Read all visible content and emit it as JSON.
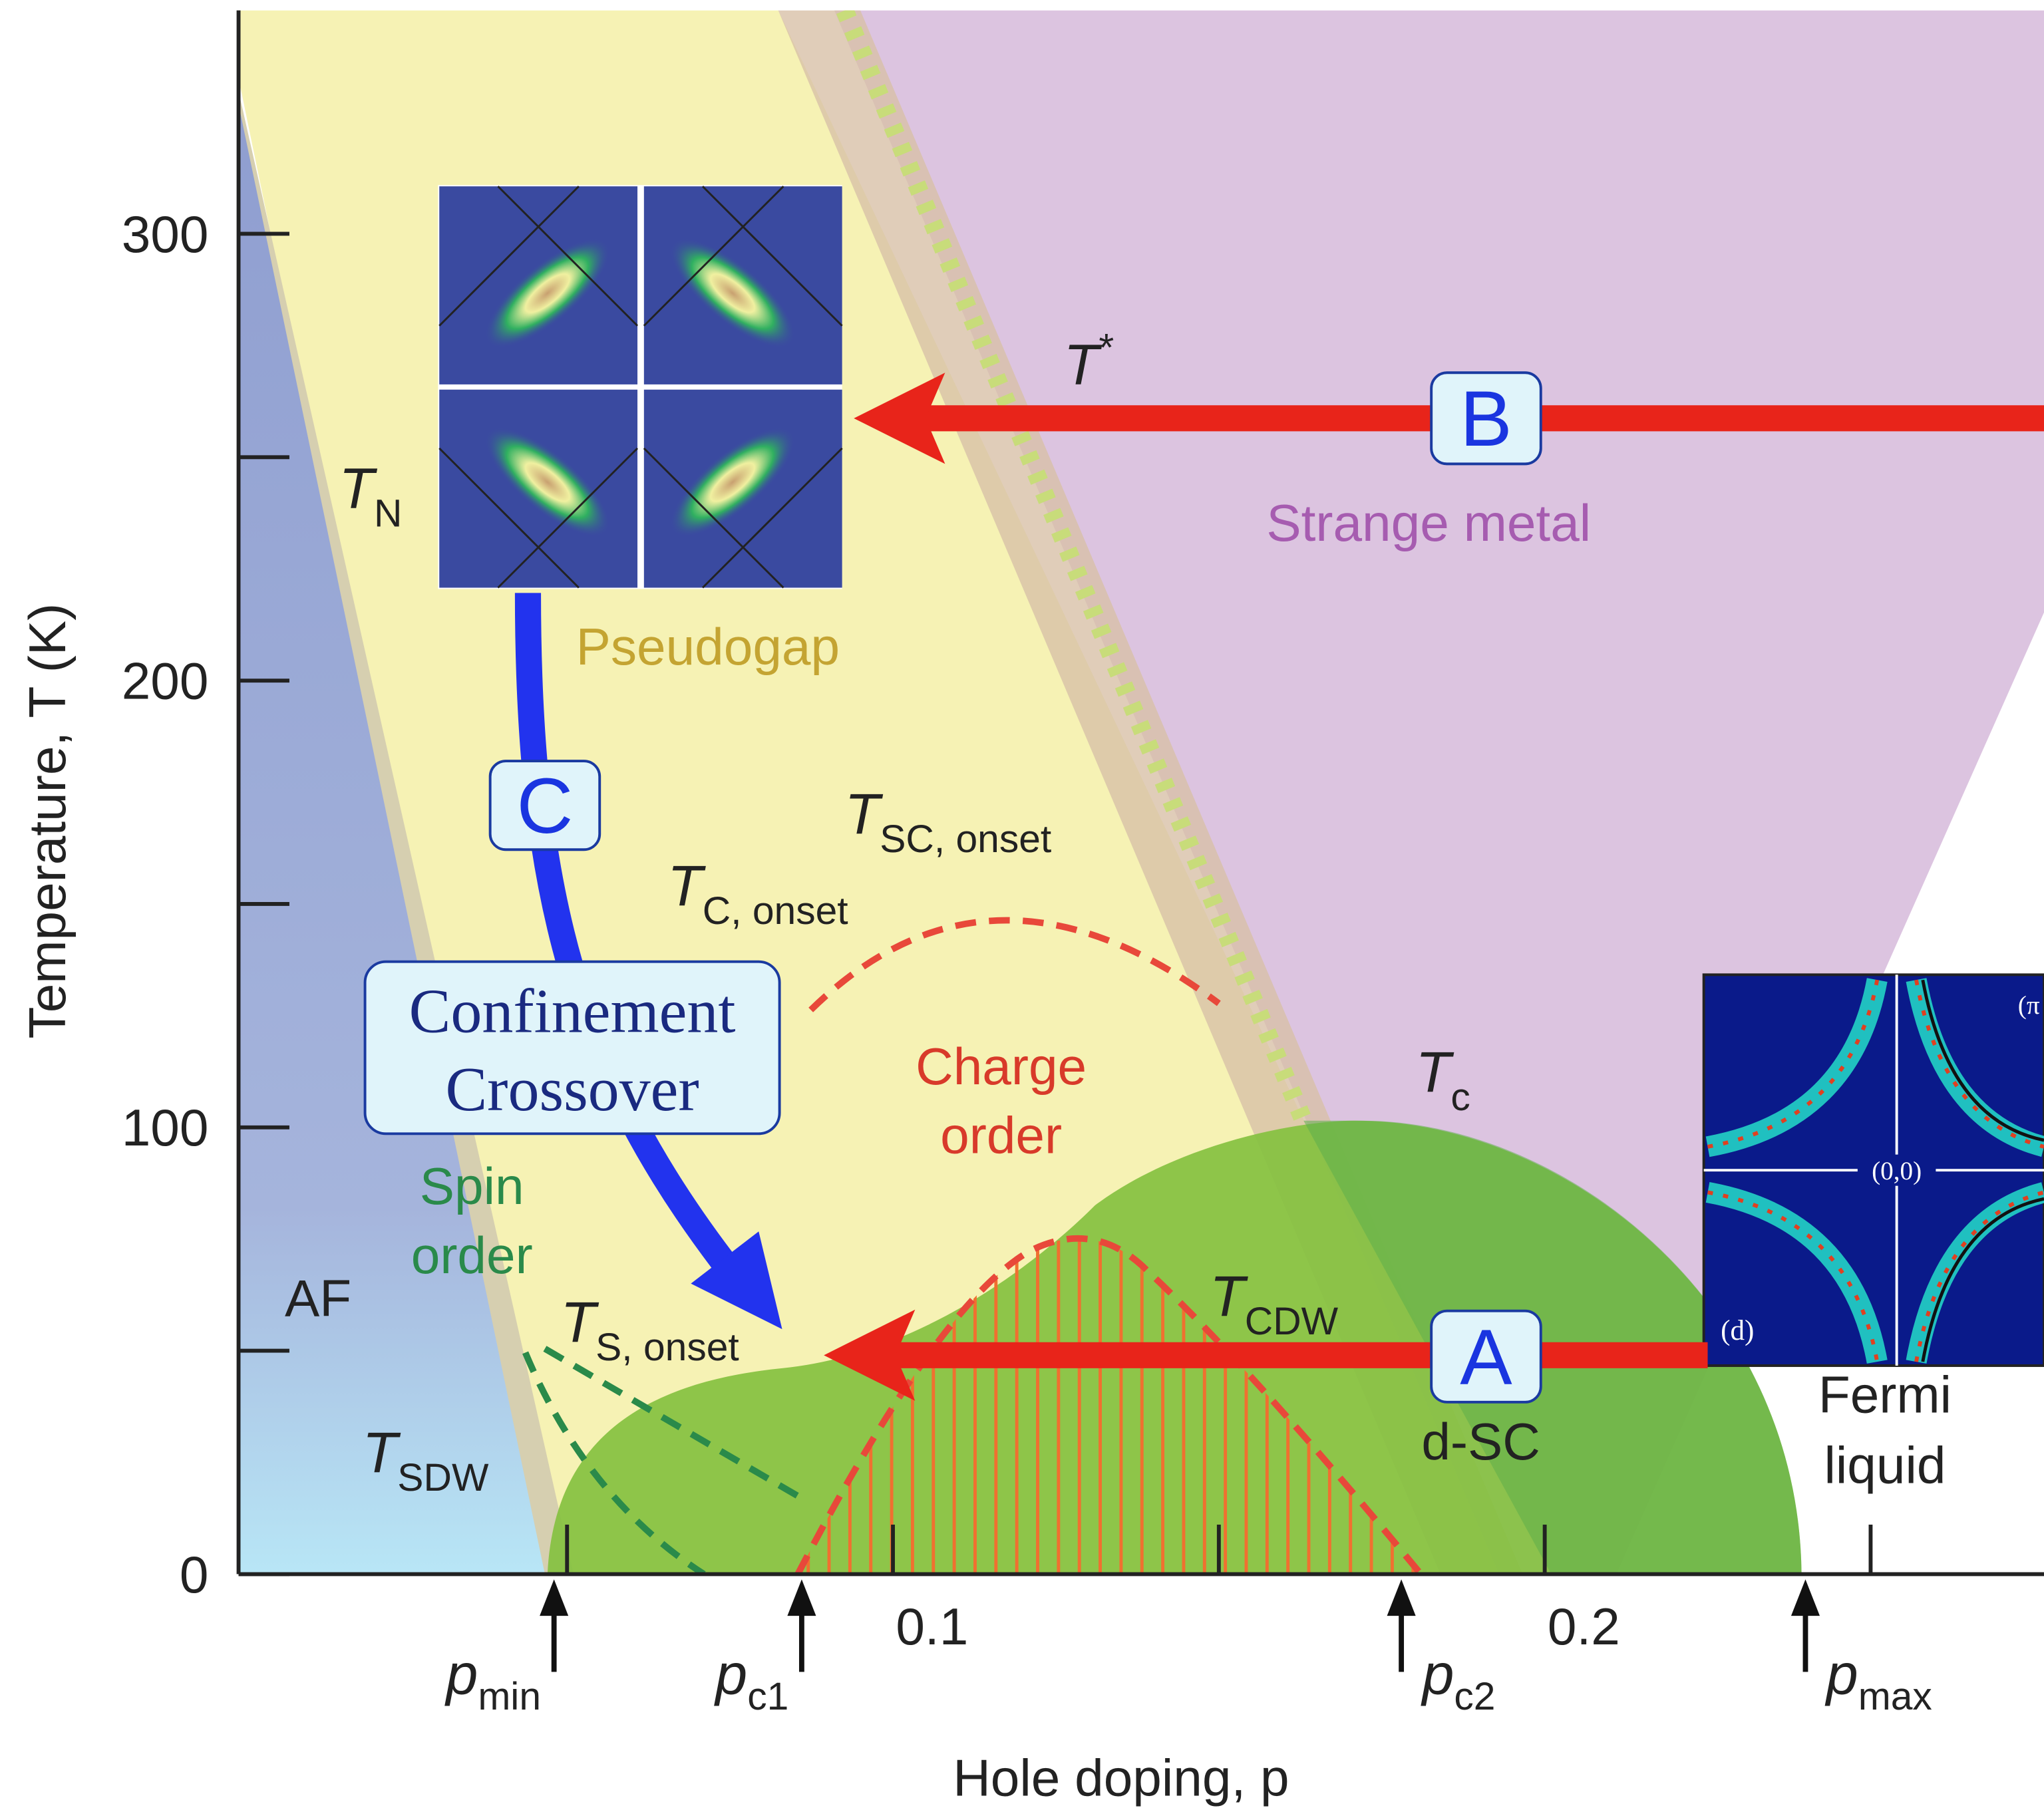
{
  "chart_data": {
    "type": "phase-diagram",
    "xlabel": "Hole doping, p",
    "ylabel": "Temperature, T (K)",
    "xlim": [
      0,
      0.277
    ],
    "ylim": [
      0,
      350
    ],
    "xticks": [
      0.1,
      0.2
    ],
    "x_minor_ticks": [
      0.05,
      0.15,
      0.25
    ],
    "yticks": [
      0,
      100,
      200,
      300
    ],
    "y_minor_ticks": [
      50,
      150,
      250
    ],
    "doping_markers": [
      {
        "main": "p",
        "sub": "min",
        "value": 0.048
      },
      {
        "main": "p",
        "sub": "c1",
        "value": 0.086
      },
      {
        "main": "p",
        "sub": "c2",
        "value": 0.178
      },
      {
        "main": "p",
        "sub": "max",
        "value": 0.24
      }
    ],
    "regions": {
      "strange_metal": "Strange metal",
      "pseudogap": "Pseudogap",
      "charge_order": [
        "Charge",
        "order"
      ],
      "spin_order": [
        "Spin",
        "order"
      ],
      "af": "AF",
      "fermi_liquid": [
        "Fermi",
        "liquid"
      ],
      "dsc": "d-SC"
    },
    "temperatures": {
      "t_star": {
        "main": "T",
        "sup": "*"
      },
      "t_n": {
        "main": "T",
        "sub": "N"
      },
      "t_sc_onset": {
        "main": "T",
        "sub": "SC, onset"
      },
      "t_c_onset": {
        "main": "T",
        "sub": "C, onset"
      },
      "t_c": {
        "main": "T",
        "sub": "c"
      },
      "t_cdw": {
        "main": "T",
        "sub": "CDW"
      },
      "t_s_onset": {
        "main": "T",
        "sub": "S, onset"
      },
      "t_sdw": {
        "main": "T",
        "sub": "SDW"
      }
    },
    "callouts": {
      "a": "A",
      "b": "B",
      "c": "C",
      "confinement": [
        "Confinement",
        "Crossover"
      ]
    },
    "inset": {
      "panel": "(d)",
      "origin": "(0,0)",
      "corner": "(π"
    }
  }
}
